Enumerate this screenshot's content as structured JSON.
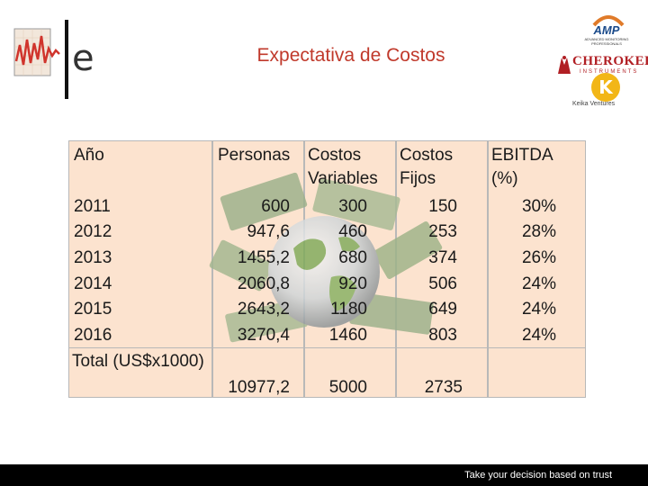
{
  "header": {
    "title": "Expectativa de Costos",
    "logos": {
      "left_letter": "e",
      "amp": "AMP",
      "amp_sub": "ADVANCED MONITORING PROFESSIONALS",
      "cherokee": "CHEROKEE",
      "cherokee_sub": "INSTRUMENTS",
      "keika_letter": "K",
      "keika": "Keika Ventures"
    }
  },
  "table": {
    "headers": [
      {
        "line1": "Año",
        "line2": ""
      },
      {
        "line1": "Personas",
        "line2": ""
      },
      {
        "line1": "Costos",
        "line2": "Variables"
      },
      {
        "line1": "Costos",
        "line2": "Fijos"
      },
      {
        "line1": "EBITDA",
        "line2": "(%)"
      }
    ],
    "rows": [
      {
        "year": "2011",
        "personas": "600",
        "variables": "300",
        "fijos": "150",
        "ebitda": "30%"
      },
      {
        "year": "2012",
        "personas": "947,6",
        "variables": "460",
        "fijos": "253",
        "ebitda": "28%"
      },
      {
        "year": "2013",
        "personas": "1455,2",
        "variables": "680",
        "fijos": "374",
        "ebitda": "26%"
      },
      {
        "year": "2014",
        "personas": "2060,8",
        "variables": "920",
        "fijos": "506",
        "ebitda": "24%"
      },
      {
        "year": "2015",
        "personas": "2643,2",
        "variables": "1180",
        "fijos": "649",
        "ebitda": "24%"
      },
      {
        "year": "2016",
        "personas": "3270,4",
        "variables": "1460",
        "fijos": "803",
        "ebitda": "24%"
      }
    ],
    "total": {
      "label": "Total (US$x1000)",
      "personas": "10977,2",
      "variables": "5000",
      "fijos": "2735"
    }
  },
  "footer": {
    "text": "Take your decision based on trust"
  },
  "colors": {
    "title": "#c0392b",
    "cell": "#fce3cf",
    "footer": "#000000"
  }
}
